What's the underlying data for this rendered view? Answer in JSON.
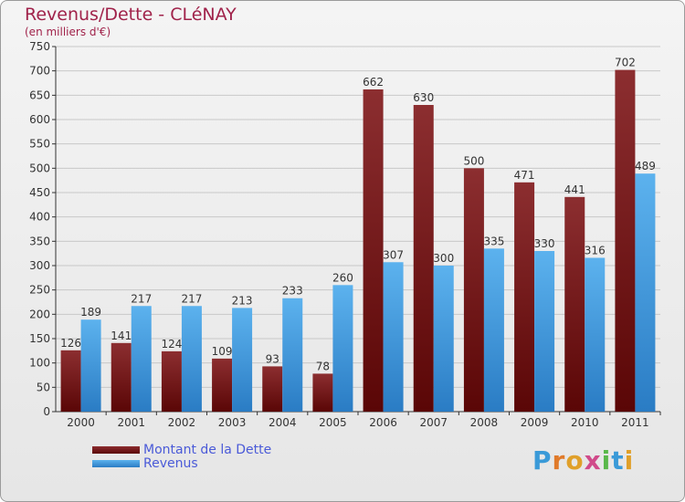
{
  "chart_data": {
    "type": "bar",
    "title": "Revenus/Dette - CLéNAY",
    "subtitle": "(en milliers d'€)",
    "categories": [
      "2000",
      "2001",
      "2002",
      "2003",
      "2004",
      "2005",
      "2006",
      "2007",
      "2008",
      "2009",
      "2010",
      "2011"
    ],
    "series": [
      {
        "name": "Montant de la Dette",
        "values": [
          126,
          141,
          124,
          109,
          93,
          78,
          662,
          630,
          500,
          471,
          441,
          702
        ],
        "color": "#7a1a1a"
      },
      {
        "name": "Revenus",
        "values": [
          189,
          217,
          217,
          213,
          233,
          260,
          307,
          300,
          335,
          330,
          316,
          489
        ],
        "color": "#4aa6e8"
      }
    ],
    "ylim": [
      0,
      750
    ],
    "yticks": [
      0,
      50,
      100,
      150,
      200,
      250,
      300,
      350,
      400,
      450,
      500,
      550,
      600,
      650,
      700,
      750
    ],
    "grid": true,
    "legend_position": "bottom-left"
  },
  "logo_text": "Proxiti"
}
